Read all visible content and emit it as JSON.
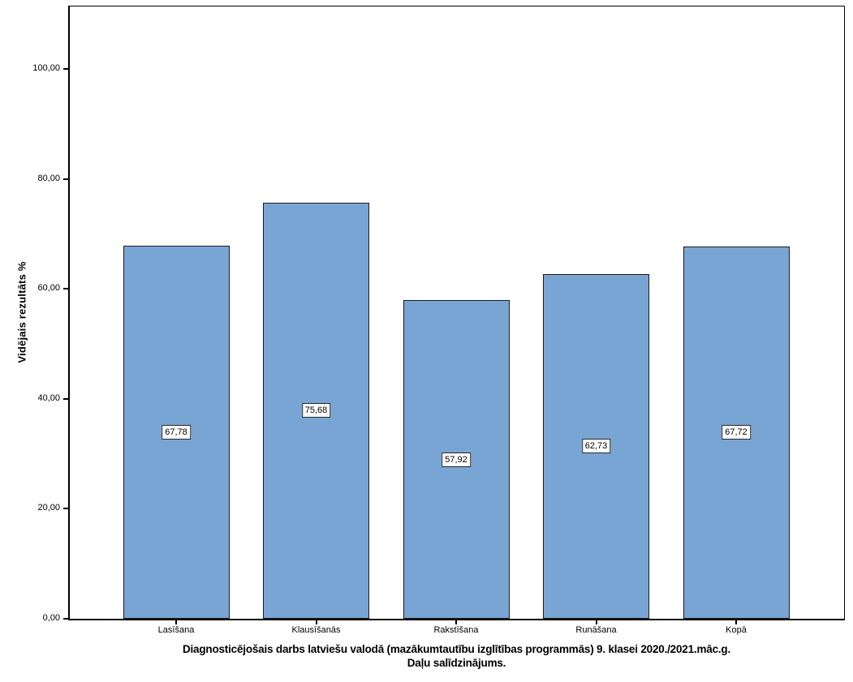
{
  "chart_data": {
    "type": "bar",
    "title": "Diagnosticējošais darbs latviešu valodā (mazākumtautību izglītības programmās) 9. klasei 2020./2021.māc.g.",
    "subtitle": "Daļu salīdzinājums.",
    "ylabel": "Vidējais rezultāts %",
    "xlabel": "",
    "categories": [
      "Lasīšana",
      "Klausīšanās",
      "Rakstīšana",
      "Runāšana",
      "Kopā"
    ],
    "values": [
      67.78,
      75.68,
      57.92,
      62.73,
      67.72
    ],
    "value_labels": [
      "67,78",
      "75,68",
      "57,92",
      "62,73",
      "67,72"
    ],
    "y_ticks": [
      {
        "value": 0,
        "label": "0,00"
      },
      {
        "value": 20,
        "label": "20,00"
      },
      {
        "value": 40,
        "label": "40,00"
      },
      {
        "value": 60,
        "label": "60,00"
      },
      {
        "value": 80,
        "label": "80,00"
      },
      {
        "value": 100,
        "label": "100,00"
      }
    ],
    "ylim": [
      0,
      111.5
    ],
    "grid": false,
    "legend": "none",
    "colors": {
      "bar_fill": "#79A5D5",
      "bar_border": "#1a1a1a",
      "axis": "#000000",
      "text": "#000000",
      "label_box_bg": "#ffffff",
      "label_box_border": "#262626",
      "background": "#ffffff"
    }
  }
}
